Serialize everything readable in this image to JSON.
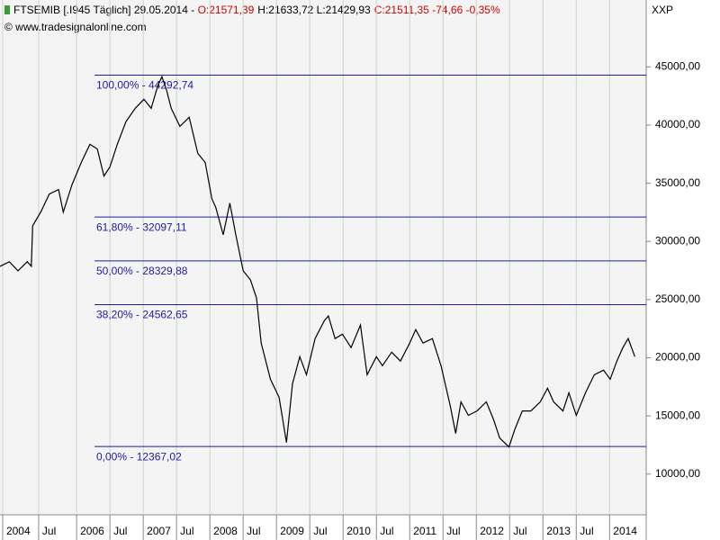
{
  "header": {
    "instrument": "FTSEMIB [.I945  Täglich] 29.05.2014 - ",
    "open": "O:21571,39",
    "high_low": "H:21633,72 L:21429,93",
    "close": "C:21511,35 -74,66 -0,35%",
    "source": "© www.tradesignalonline.com",
    "currency": "XXP"
  },
  "chart_data": {
    "type": "line",
    "x": [
      2004.85,
      2004.99,
      2005.12,
      2005.26,
      2005.32,
      2005.34,
      2005.46,
      2005.59,
      2005.73,
      2005.8,
      2005.93,
      2006.07,
      2006.2,
      2006.31,
      2006.41,
      2006.5,
      2006.61,
      2006.74,
      2006.88,
      2007.01,
      2007.12,
      2007.22,
      2007.28,
      2007.35,
      2007.42,
      2007.55,
      2007.69,
      2007.82,
      2007.93,
      2008.03,
      2008.09,
      2008.2,
      2008.3,
      2008.39,
      2008.5,
      2008.61,
      2008.7,
      2008.77,
      2008.91,
      2009.04,
      2009.15,
      2009.24,
      2009.35,
      2009.45,
      2009.58,
      2009.72,
      2009.78,
      2009.88,
      2009.99,
      2010.12,
      2010.26,
      2010.36,
      2010.5,
      2010.59,
      2010.73,
      2010.86,
      2011.0,
      2011.09,
      2011.2,
      2011.34,
      2011.47,
      2011.61,
      2011.69,
      2011.77,
      2011.88,
      2012.01,
      2012.15,
      2012.26,
      2012.35,
      2012.49,
      2012.58,
      2012.69,
      2012.82,
      2012.96,
      2013.07,
      2013.16,
      2013.3,
      2013.39,
      2013.5,
      2013.64,
      2013.77,
      2013.91,
      2014.01,
      2014.11,
      2014.2,
      2014.28,
      2014.38
    ],
    "series": [
      {
        "name": "FTSEMIB",
        "color": "#000000",
        "values": [
          27860,
          28250,
          27470,
          28250,
          27860,
          31350,
          32520,
          34070,
          34460,
          32520,
          34850,
          36790,
          38340,
          37950,
          35620,
          36400,
          38340,
          40280,
          41440,
          42220,
          41440,
          43390,
          44160,
          43000,
          41440,
          39890,
          40670,
          37560,
          36790,
          33680,
          32910,
          30570,
          33290,
          30570,
          27470,
          26690,
          25140,
          21260,
          18150,
          16600,
          12720,
          17760,
          20090,
          18540,
          21650,
          23200,
          23590,
          21650,
          22030,
          20870,
          22810,
          18540,
          20090,
          19320,
          20480,
          19710,
          21260,
          22420,
          21260,
          21650,
          19320,
          15820,
          13490,
          16210,
          15050,
          15430,
          16210,
          14660,
          13100,
          12330,
          13880,
          15430,
          15430,
          16210,
          17380,
          16210,
          15430,
          16990,
          15050,
          16990,
          18540,
          18930,
          18150,
          19710,
          20870,
          21650,
          20090
        ]
      }
    ],
    "xlim": [
      2004.85,
      2014.55
    ],
    "ylim": [
      6500,
      50750
    ],
    "xticks": [
      {
        "value": 2004.89,
        "label": "2004"
      },
      {
        "value": 2005.43,
        "label": "Jul"
      },
      {
        "value": 2006,
        "label": "2006"
      },
      {
        "value": 2006.5,
        "label": "Jul"
      },
      {
        "value": 2007,
        "label": "2007"
      },
      {
        "value": 2007.5,
        "label": "Jul"
      },
      {
        "value": 2008,
        "label": "2008"
      },
      {
        "value": 2008.5,
        "label": "Jul"
      },
      {
        "value": 2009,
        "label": "2009"
      },
      {
        "value": 2009.5,
        "label": "Jul"
      },
      {
        "value": 2010,
        "label": "2010"
      },
      {
        "value": 2010.5,
        "label": "Jul"
      },
      {
        "value": 2011,
        "label": "2011"
      },
      {
        "value": 2011.5,
        "label": "Jul"
      },
      {
        "value": 2012,
        "label": "2012"
      },
      {
        "value": 2012.5,
        "label": "Jul"
      },
      {
        "value": 2013,
        "label": "2013"
      },
      {
        "value": 2013.5,
        "label": "Jul"
      },
      {
        "value": 2014,
        "label": "2014"
      }
    ],
    "yticks": [
      {
        "value": 10000,
        "label": "10000,00"
      },
      {
        "value": 15000,
        "label": "15000,00"
      },
      {
        "value": 20000,
        "label": "20000,00"
      },
      {
        "value": 25000,
        "label": "25000,00"
      },
      {
        "value": 30000,
        "label": "30000,00"
      },
      {
        "value": 35000,
        "label": "35000,00"
      },
      {
        "value": 40000,
        "label": "40000,00"
      },
      {
        "value": 45000,
        "label": "45000,00"
      }
    ],
    "levels": [
      {
        "value": 44292.74,
        "label": "100,00% - 44292,74"
      },
      {
        "value": 32097.11,
        "label": "61,80% - 32097,11"
      },
      {
        "value": 28329.88,
        "label": "50,00% - 28329,88"
      },
      {
        "value": 24562.65,
        "label": "38,20% - 24562,65"
      },
      {
        "value": 12367.02,
        "label": "0,00% - 12367,02"
      }
    ],
    "level_color": "#1c1ca8",
    "grid": true
  }
}
